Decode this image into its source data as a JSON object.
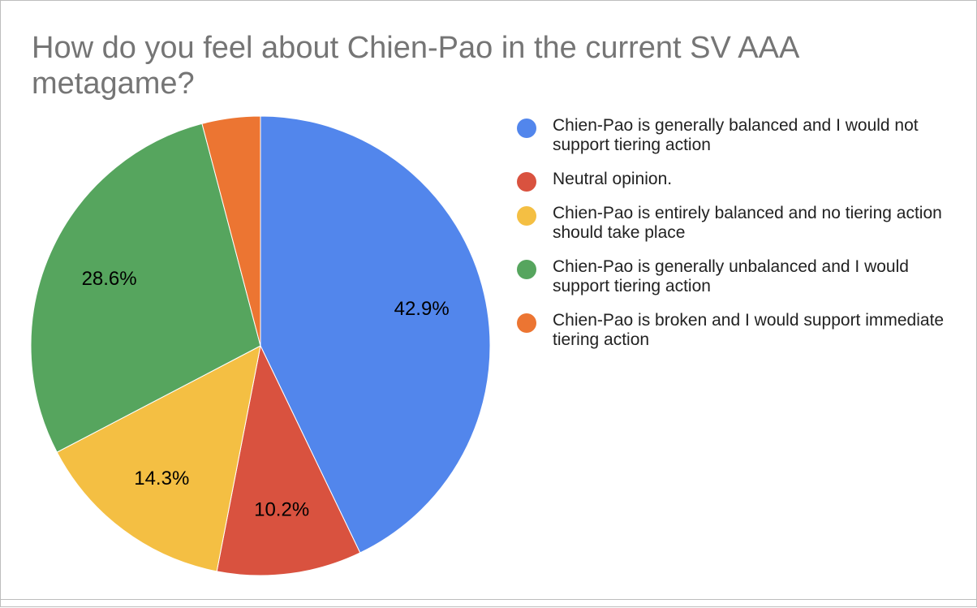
{
  "chart_data": {
    "type": "pie",
    "title": "How do you feel about Chien-Pao in the current SV AAA metagame?",
    "legend_position": "right",
    "start_angle": "12 o'clock, clockwise",
    "slices": [
      {
        "label": "Chien-Pao is generally balanced and I would not support tiering action",
        "value": 42.9,
        "display": "42.9%",
        "color": "#5286ec"
      },
      {
        "label": "Neutral opinion.",
        "value": 10.2,
        "display": "10.2%",
        "color": "#d9523f"
      },
      {
        "label": "Chien-Pao is entirely balanced and no tiering action should take place",
        "value": 14.3,
        "display": "14.3%",
        "color": "#f4bf43"
      },
      {
        "label": "Chien-Pao is generally unbalanced and I would support tiering action",
        "value": 28.6,
        "display": "28.6%",
        "color": "#56a55e"
      },
      {
        "label": "Chien-Pao is broken and I would support immediate tiering action",
        "value": 4.1,
        "display": "",
        "color": "#ec7532"
      }
    ]
  }
}
